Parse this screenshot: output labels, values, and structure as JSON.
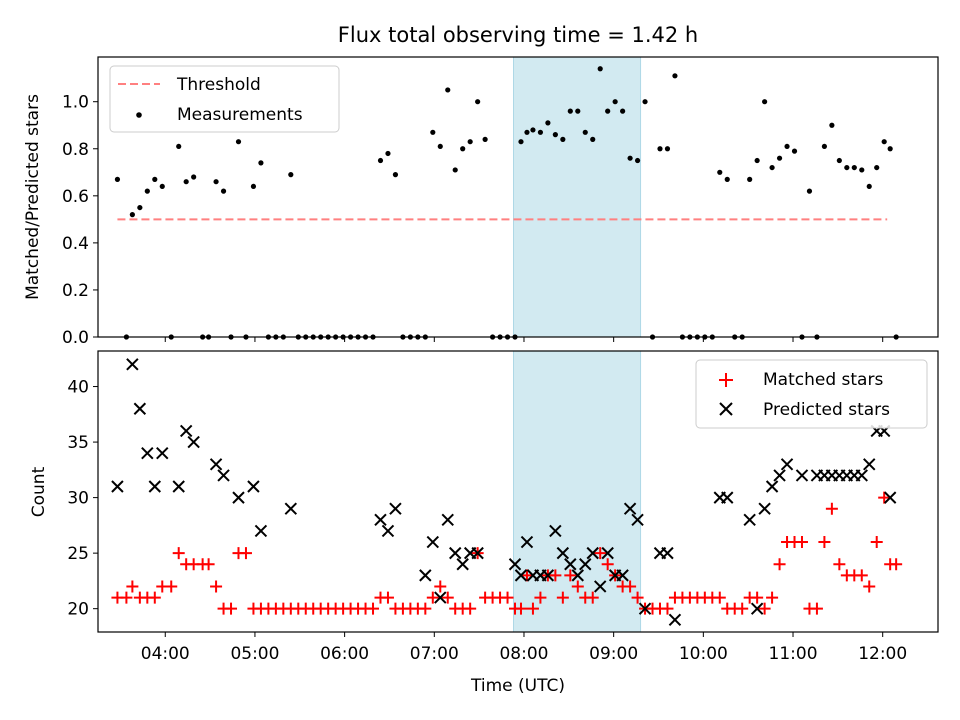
{
  "title": "Flux total observing time = 1.42 h",
  "colors": {
    "threshold": "#ff8080",
    "measurement": "#000000",
    "matched": "#ff0000",
    "predicted": "#000000",
    "band": "#add8e6"
  },
  "chart_data": [
    {
      "type": "scatter",
      "ylabel": "Matched/Predicted stars",
      "ylim": [
        0,
        1.19
      ],
      "yticks": [
        0.0,
        0.2,
        0.4,
        0.6,
        0.8,
        1.0
      ],
      "ytick_labels": [
        "0.0",
        "0.2",
        "0.4",
        "0.6",
        "0.8",
        "1.0"
      ],
      "legend": {
        "position": "top-left",
        "threshold_label": "Threshold",
        "measurements_label": "Measurements"
      },
      "threshold": {
        "value": 0.5,
        "x_start": "03:28",
        "x_end": "12:03"
      },
      "highlight": {
        "start": "07:53",
        "end": "09:18"
      },
      "measurements": [
        [
          "03:28",
          0.67
        ],
        [
          "03:34",
          0.0
        ],
        [
          "03:38",
          0.52
        ],
        [
          "03:43",
          0.55
        ],
        [
          "03:48",
          0.62
        ],
        [
          "03:53",
          0.67
        ],
        [
          "03:58",
          0.64
        ],
        [
          "04:04",
          0.0
        ],
        [
          "04:09",
          0.81
        ],
        [
          "04:14",
          0.66
        ],
        [
          "04:19",
          0.68
        ],
        [
          "04:25",
          0.0
        ],
        [
          "04:29",
          0.0
        ],
        [
          "04:34",
          0.66
        ],
        [
          "04:39",
          0.62
        ],
        [
          "04:44",
          0.0
        ],
        [
          "04:49",
          0.83
        ],
        [
          "04:54",
          0.0
        ],
        [
          "04:59",
          0.64
        ],
        [
          "05:04",
          0.74
        ],
        [
          "05:09",
          0.0
        ],
        [
          "05:14",
          0.0
        ],
        [
          "05:19",
          0.0
        ],
        [
          "05:24",
          0.69
        ],
        [
          "05:29",
          0.0
        ],
        [
          "05:34",
          0.0
        ],
        [
          "05:39",
          0.0
        ],
        [
          "05:44",
          0.0
        ],
        [
          "05:49",
          0.0
        ],
        [
          "05:54",
          0.0
        ],
        [
          "05:59",
          0.0
        ],
        [
          "06:04",
          0.0
        ],
        [
          "06:09",
          0.0
        ],
        [
          "06:14",
          0.0
        ],
        [
          "06:19",
          0.0
        ],
        [
          "06:24",
          0.75
        ],
        [
          "06:29",
          0.78
        ],
        [
          "06:34",
          0.69
        ],
        [
          "06:39",
          0.0
        ],
        [
          "06:44",
          0.0
        ],
        [
          "06:49",
          0.0
        ],
        [
          "06:54",
          0.0
        ],
        [
          "06:59",
          0.87
        ],
        [
          "07:04",
          0.81
        ],
        [
          "07:09",
          1.05
        ],
        [
          "07:14",
          0.71
        ],
        [
          "07:19",
          0.8
        ],
        [
          "07:24",
          0.83
        ],
        [
          "07:29",
          1.0
        ],
        [
          "07:34",
          0.84
        ],
        [
          "07:39",
          0.0
        ],
        [
          "07:44",
          0.0
        ],
        [
          "07:49",
          0.0
        ],
        [
          "07:54",
          0.0
        ],
        [
          "07:58",
          0.83
        ],
        [
          "08:02",
          0.87
        ],
        [
          "08:06",
          0.88
        ],
        [
          "08:11",
          0.87
        ],
        [
          "08:16",
          0.91
        ],
        [
          "08:21",
          0.86
        ],
        [
          "08:26",
          0.84
        ],
        [
          "08:31",
          0.96
        ],
        [
          "08:36",
          0.96
        ],
        [
          "08:41",
          0.87
        ],
        [
          "08:46",
          0.84
        ],
        [
          "08:51",
          1.14
        ],
        [
          "08:56",
          0.96
        ],
        [
          "09:01",
          1.0
        ],
        [
          "09:06",
          0.96
        ],
        [
          "09:11",
          0.76
        ],
        [
          "09:16",
          0.75
        ],
        [
          "09:21",
          1.0
        ],
        [
          "09:26",
          0.0
        ],
        [
          "09:31",
          0.8
        ],
        [
          "09:36",
          0.8
        ],
        [
          "09:41",
          1.11
        ],
        [
          "09:46",
          0.0
        ],
        [
          "09:51",
          0.0
        ],
        [
          "09:56",
          0.0
        ],
        [
          "10:01",
          0.0
        ],
        [
          "10:06",
          0.0
        ],
        [
          "10:11",
          0.7
        ],
        [
          "10:16",
          0.67
        ],
        [
          "10:21",
          0.0
        ],
        [
          "10:26",
          0.0
        ],
        [
          "10:31",
          0.67
        ],
        [
          "10:36",
          0.75
        ],
        [
          "10:41",
          1.0
        ],
        [
          "10:46",
          0.72
        ],
        [
          "10:51",
          0.76
        ],
        [
          "10:56",
          0.81
        ],
        [
          "11:01",
          0.79
        ],
        [
          "11:06",
          0.0
        ],
        [
          "11:11",
          0.62
        ],
        [
          "11:16",
          0.0
        ],
        [
          "11:21",
          0.81
        ],
        [
          "11:26",
          0.9
        ],
        [
          "11:31",
          0.75
        ],
        [
          "11:36",
          0.72
        ],
        [
          "11:41",
          0.72
        ],
        [
          "11:46",
          0.71
        ],
        [
          "11:51",
          0.64
        ],
        [
          "11:56",
          0.72
        ],
        [
          "12:01",
          0.83
        ],
        [
          "12:05",
          0.8
        ],
        [
          "12:09",
          0.0
        ]
      ]
    },
    {
      "type": "scatter",
      "xlabel": "Time (UTC)",
      "ylabel": "Count",
      "xlim": [
        "03:15",
        "12:37"
      ],
      "ylim": [
        17.9,
        43.2
      ],
      "yticks": [
        20,
        25,
        30,
        35,
        40
      ],
      "ytick_labels": [
        "20",
        "25",
        "30",
        "35",
        "40"
      ],
      "xtick_labels": [
        "04:00",
        "05:00",
        "06:00",
        "07:00",
        "08:00",
        "09:00",
        "10:00",
        "11:00",
        "12:00"
      ],
      "legend": {
        "position": "top-right",
        "matched_label": "Matched stars",
        "predicted_label": "Predicted stars"
      },
      "highlight": {
        "start": "07:53",
        "end": "09:18"
      },
      "matched": [
        [
          "03:28",
          21
        ],
        [
          "03:34",
          21
        ],
        [
          "03:38",
          22
        ],
        [
          "03:43",
          21
        ],
        [
          "03:48",
          21
        ],
        [
          "03:53",
          21
        ],
        [
          "03:58",
          22
        ],
        [
          "04:04",
          22
        ],
        [
          "04:09",
          25
        ],
        [
          "04:14",
          24
        ],
        [
          "04:19",
          24
        ],
        [
          "04:25",
          24
        ],
        [
          "04:29",
          24
        ],
        [
          "04:34",
          22
        ],
        [
          "04:39",
          20
        ],
        [
          "04:44",
          20
        ],
        [
          "04:49",
          25
        ],
        [
          "04:54",
          25
        ],
        [
          "04:59",
          20
        ],
        [
          "05:04",
          20
        ],
        [
          "05:09",
          20
        ],
        [
          "05:14",
          20
        ],
        [
          "05:19",
          20
        ],
        [
          "05:24",
          20
        ],
        [
          "05:29",
          20
        ],
        [
          "05:34",
          20
        ],
        [
          "05:39",
          20
        ],
        [
          "05:44",
          20
        ],
        [
          "05:49",
          20
        ],
        [
          "05:54",
          20
        ],
        [
          "05:59",
          20
        ],
        [
          "06:04",
          20
        ],
        [
          "06:09",
          20
        ],
        [
          "06:14",
          20
        ],
        [
          "06:19",
          20
        ],
        [
          "06:24",
          21
        ],
        [
          "06:29",
          21
        ],
        [
          "06:34",
          20
        ],
        [
          "06:39",
          20
        ],
        [
          "06:44",
          20
        ],
        [
          "06:49",
          20
        ],
        [
          "06:54",
          20
        ],
        [
          "06:59",
          21
        ],
        [
          "07:04",
          22
        ],
        [
          "07:09",
          21
        ],
        [
          "07:14",
          20
        ],
        [
          "07:19",
          20
        ],
        [
          "07:24",
          20
        ],
        [
          "07:29",
          25
        ],
        [
          "07:34",
          21
        ],
        [
          "07:39",
          21
        ],
        [
          "07:44",
          21
        ],
        [
          "07:49",
          21
        ],
        [
          "07:54",
          20
        ],
        [
          "07:58",
          20
        ],
        [
          "08:02",
          23
        ],
        [
          "08:06",
          20
        ],
        [
          "08:11",
          21
        ],
        [
          "08:16",
          23
        ],
        [
          "08:21",
          23
        ],
        [
          "08:26",
          21
        ],
        [
          "08:31",
          23
        ],
        [
          "08:36",
          22
        ],
        [
          "08:41",
          21
        ],
        [
          "08:46",
          21
        ],
        [
          "08:51",
          25
        ],
        [
          "08:56",
          24
        ],
        [
          "09:01",
          23
        ],
        [
          "09:06",
          22
        ],
        [
          "09:11",
          22
        ],
        [
          "09:16",
          21
        ],
        [
          "09:21",
          20
        ],
        [
          "09:26",
          20
        ],
        [
          "09:31",
          20
        ],
        [
          "09:36",
          20
        ],
        [
          "09:41",
          21
        ],
        [
          "09:46",
          21
        ],
        [
          "09:51",
          21
        ],
        [
          "09:56",
          21
        ],
        [
          "10:01",
          21
        ],
        [
          "10:06",
          21
        ],
        [
          "10:11",
          21
        ],
        [
          "10:16",
          20
        ],
        [
          "10:21",
          20
        ],
        [
          "10:26",
          20
        ],
        [
          "10:31",
          21
        ],
        [
          "10:36",
          21
        ],
        [
          "10:41",
          20
        ],
        [
          "10:46",
          21
        ],
        [
          "10:51",
          24
        ],
        [
          "10:56",
          26
        ],
        [
          "11:01",
          26
        ],
        [
          "11:06",
          26
        ],
        [
          "11:11",
          20
        ],
        [
          "11:16",
          20
        ],
        [
          "11:21",
          26
        ],
        [
          "11:26",
          29
        ],
        [
          "11:31",
          24
        ],
        [
          "11:36",
          23
        ],
        [
          "11:41",
          23
        ],
        [
          "11:46",
          23
        ],
        [
          "11:51",
          22
        ],
        [
          "11:56",
          26
        ],
        [
          "12:01",
          30
        ],
        [
          "12:05",
          24
        ],
        [
          "12:09",
          24
        ]
      ],
      "predicted": [
        [
          "03:28",
          31
        ],
        [
          "03:38",
          42
        ],
        [
          "03:43",
          38
        ],
        [
          "03:48",
          34
        ],
        [
          "03:53",
          31
        ],
        [
          "03:58",
          34
        ],
        [
          "04:09",
          31
        ],
        [
          "04:14",
          36
        ],
        [
          "04:19",
          35
        ],
        [
          "04:34",
          33
        ],
        [
          "04:39",
          32
        ],
        [
          "04:49",
          30
        ],
        [
          "04:59",
          31
        ],
        [
          "05:04",
          27
        ],
        [
          "05:24",
          29
        ],
        [
          "06:24",
          28
        ],
        [
          "06:29",
          27
        ],
        [
          "06:34",
          29
        ],
        [
          "06:54",
          23
        ],
        [
          "06:59",
          26
        ],
        [
          "07:04",
          21
        ],
        [
          "07:09",
          28
        ],
        [
          "07:14",
          25
        ],
        [
          "07:19",
          24
        ],
        [
          "07:24",
          25
        ],
        [
          "07:29",
          25
        ],
        [
          "07:54",
          24
        ],
        [
          "07:58",
          23
        ],
        [
          "08:02",
          26
        ],
        [
          "08:06",
          23
        ],
        [
          "08:11",
          23
        ],
        [
          "08:16",
          23
        ],
        [
          "08:21",
          27
        ],
        [
          "08:26",
          25
        ],
        [
          "08:31",
          24
        ],
        [
          "08:36",
          23
        ],
        [
          "08:41",
          24
        ],
        [
          "08:46",
          25
        ],
        [
          "08:51",
          22
        ],
        [
          "08:56",
          25
        ],
        [
          "09:01",
          23
        ],
        [
          "09:06",
          23
        ],
        [
          "09:11",
          29
        ],
        [
          "09:16",
          28
        ],
        [
          "09:21",
          20
        ],
        [
          "09:31",
          25
        ],
        [
          "09:36",
          25
        ],
        [
          "09:41",
          19
        ],
        [
          "10:11",
          30
        ],
        [
          "10:16",
          30
        ],
        [
          "10:31",
          28
        ],
        [
          "10:36",
          20
        ],
        [
          "10:41",
          29
        ],
        [
          "10:46",
          31
        ],
        [
          "10:51",
          32
        ],
        [
          "10:56",
          33
        ],
        [
          "11:06",
          32
        ],
        [
          "11:16",
          32
        ],
        [
          "11:21",
          32
        ],
        [
          "11:26",
          32
        ],
        [
          "11:31",
          32
        ],
        [
          "11:36",
          32
        ],
        [
          "11:41",
          32
        ],
        [
          "11:46",
          32
        ],
        [
          "11:51",
          33
        ],
        [
          "11:56",
          36
        ],
        [
          "12:01",
          36
        ],
        [
          "12:05",
          30
        ]
      ]
    }
  ]
}
